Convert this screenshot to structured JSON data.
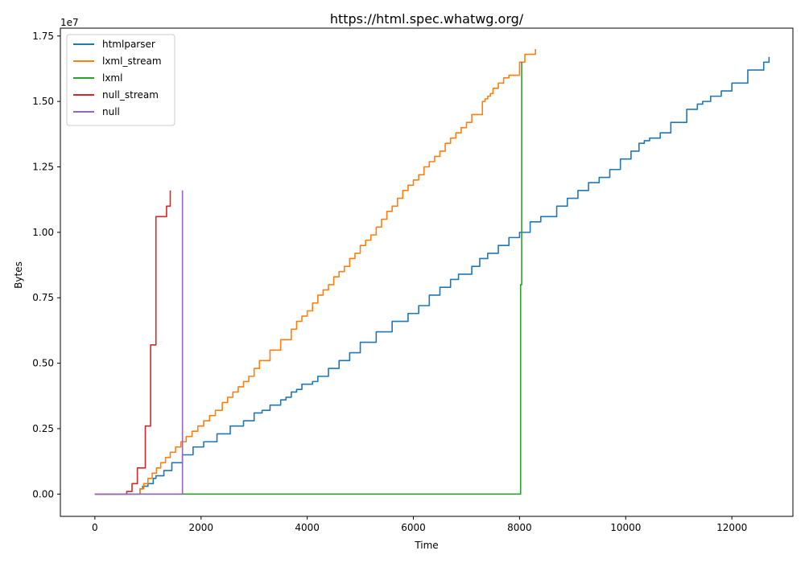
{
  "chart_data": {
    "type": "line",
    "title": "https://html.spec.whatwg.org/",
    "xlabel": "Time",
    "ylabel": "Bytes",
    "y_offset_label": "1e7",
    "xlim": [
      -650,
      13150
    ],
    "ylim": [
      -0.085,
      1.78
    ],
    "y_scale": 10000000,
    "x_ticks": [
      0,
      2000,
      4000,
      6000,
      8000,
      10000,
      12000
    ],
    "x_tick_labels": [
      "0",
      "2000",
      "4000",
      "6000",
      "8000",
      "10000",
      "12000"
    ],
    "y_ticks": [
      0,
      0.25,
      0.5,
      0.75,
      1.0,
      1.25,
      1.5,
      1.75
    ],
    "y_tick_labels": [
      "0.00",
      "0.25",
      "0.50",
      "0.75",
      "1.00",
      "1.25",
      "1.50",
      "1.75"
    ],
    "legend_position": "top-left",
    "series": [
      {
        "name": "htmlparser",
        "color": "#1f77b4",
        "x": [
          0,
          800,
          850,
          900,
          1000,
          1100,
          1150,
          1300,
          1450,
          1650,
          1850,
          2050,
          2300,
          2550,
          2800,
          3000,
          3150,
          3300,
          3500,
          3600,
          3700,
          3800,
          3900,
          4100,
          4200,
          4400,
          4600,
          4800,
          5000,
          5300,
          5600,
          5900,
          6100,
          6300,
          6500,
          6700,
          6850,
          7100,
          7250,
          7400,
          7600,
          7800,
          8000,
          8200,
          8400,
          8700,
          8900,
          9100,
          9300,
          9500,
          9700,
          9900,
          10100,
          10250,
          10350,
          10450,
          10650,
          10850,
          11150,
          11350,
          11450,
          11600,
          11800,
          12000,
          12300,
          12600,
          12700
        ],
        "y": [
          0,
          0,
          0.02,
          0.03,
          0.04,
          0.06,
          0.07,
          0.09,
          0.12,
          0.15,
          0.18,
          0.2,
          0.23,
          0.26,
          0.28,
          0.31,
          0.32,
          0.34,
          0.36,
          0.37,
          0.39,
          0.4,
          0.42,
          0.43,
          0.45,
          0.48,
          0.51,
          0.54,
          0.58,
          0.62,
          0.66,
          0.69,
          0.72,
          0.76,
          0.79,
          0.82,
          0.84,
          0.87,
          0.9,
          0.92,
          0.95,
          0.98,
          1.0,
          1.04,
          1.06,
          1.1,
          1.13,
          1.16,
          1.19,
          1.21,
          1.24,
          1.28,
          1.31,
          1.34,
          1.35,
          1.36,
          1.38,
          1.42,
          1.47,
          1.49,
          1.5,
          1.52,
          1.54,
          1.57,
          1.62,
          1.65,
          1.67
        ]
      },
      {
        "name": "lxml_stream",
        "color": "#ff7f0e",
        "x": [
          0,
          780,
          850,
          920,
          1000,
          1080,
          1160,
          1240,
          1330,
          1420,
          1520,
          1620,
          1720,
          1830,
          1940,
          2050,
          2160,
          2270,
          2400,
          2500,
          2600,
          2700,
          2800,
          2900,
          3000,
          3100,
          3300,
          3500,
          3700,
          3800,
          3900,
          4000,
          4100,
          4200,
          4300,
          4400,
          4500,
          4600,
          4700,
          4800,
          4900,
          5000,
          5100,
          5200,
          5300,
          5400,
          5500,
          5600,
          5700,
          5800,
          5900,
          6000,
          6100,
          6200,
          6300,
          6400,
          6500,
          6600,
          6700,
          6800,
          6900,
          7000,
          7100,
          7300,
          7350,
          7400,
          7450,
          7500,
          7600,
          7700,
          7800,
          8000,
          8100,
          8300
        ],
        "y": [
          0,
          0,
          0.02,
          0.04,
          0.06,
          0.08,
          0.1,
          0.12,
          0.14,
          0.16,
          0.18,
          0.2,
          0.22,
          0.24,
          0.26,
          0.28,
          0.3,
          0.32,
          0.35,
          0.37,
          0.39,
          0.41,
          0.43,
          0.45,
          0.48,
          0.51,
          0.55,
          0.59,
          0.63,
          0.66,
          0.68,
          0.7,
          0.73,
          0.76,
          0.78,
          0.8,
          0.83,
          0.85,
          0.87,
          0.9,
          0.92,
          0.95,
          0.97,
          0.99,
          1.02,
          1.05,
          1.08,
          1.1,
          1.13,
          1.16,
          1.18,
          1.2,
          1.22,
          1.25,
          1.27,
          1.29,
          1.31,
          1.34,
          1.36,
          1.38,
          1.4,
          1.42,
          1.45,
          1.5,
          1.51,
          1.52,
          1.53,
          1.55,
          1.57,
          1.59,
          1.6,
          1.65,
          1.68,
          1.7
        ]
      },
      {
        "name": "lxml",
        "color": "#2ca02c",
        "x": [
          0,
          8000,
          8020,
          8040
        ],
        "y": [
          0,
          0,
          0.8,
          1.65
        ]
      },
      {
        "name": "null_stream",
        "color": "#d62728",
        "x": [
          0,
          600,
          700,
          800,
          950,
          1050,
          1150,
          1250,
          1350,
          1420
        ],
        "y": [
          0,
          0.01,
          0.04,
          0.1,
          0.26,
          0.57,
          1.06,
          1.06,
          1.1,
          1.16
        ]
      },
      {
        "name": "null",
        "color": "#9467bd",
        "x": [
          0,
          1600,
          1650
        ],
        "y": [
          0,
          0,
          1.16
        ]
      }
    ]
  }
}
